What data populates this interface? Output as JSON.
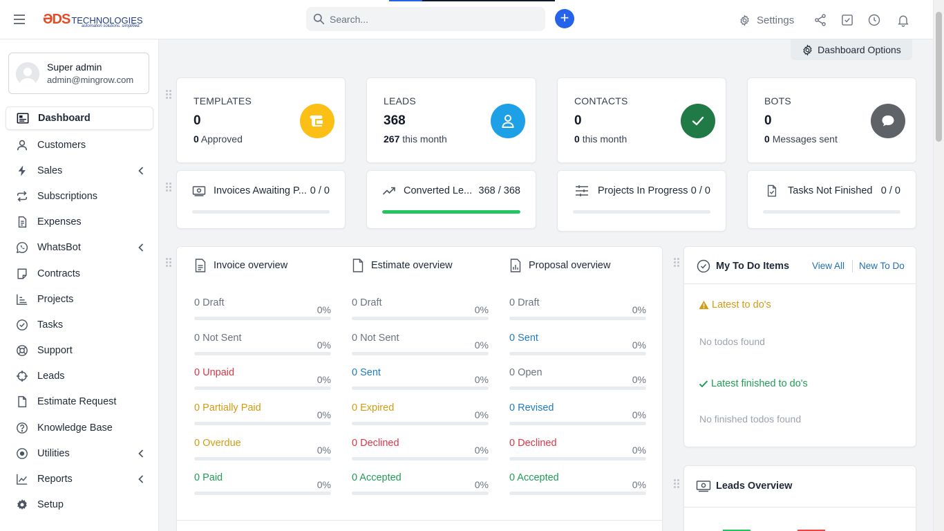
{
  "header": {
    "logo": {
      "mark": "ƏDS",
      "name": "TECHNOLOGIES",
      "tagline": "automation solutions. simplified."
    },
    "search": {
      "placeholder": "Search..."
    },
    "settings_label": "Settings",
    "icons": [
      "share-icon",
      "checkbox-icon",
      "clock-icon",
      "bell-icon"
    ]
  },
  "user": {
    "name": "Super admin",
    "email": "admin@mingrow.com"
  },
  "sidebar": {
    "items": [
      {
        "label": "Dashboard",
        "icon": "dashboard-icon",
        "active": true
      },
      {
        "label": "Customers",
        "icon": "user-icon"
      },
      {
        "label": "Sales",
        "icon": "bolt-icon",
        "has_children": true
      },
      {
        "label": "Subscriptions",
        "icon": "repeat-icon"
      },
      {
        "label": "Expenses",
        "icon": "file-icon"
      },
      {
        "label": "WhatsBot",
        "icon": "whatsapp-icon",
        "has_children": true
      },
      {
        "label": "Contracts",
        "icon": "contract-icon"
      },
      {
        "label": "Projects",
        "icon": "chart-icon"
      },
      {
        "label": "Tasks",
        "icon": "check-circle-icon"
      },
      {
        "label": "Support",
        "icon": "lifebuoy-icon"
      },
      {
        "label": "Leads",
        "icon": "crosshair-icon"
      },
      {
        "label": "Estimate Request",
        "icon": "document-icon"
      },
      {
        "label": "Knowledge Base",
        "icon": "question-icon"
      },
      {
        "label": "Utilities",
        "icon": "record-icon",
        "has_children": true
      },
      {
        "label": "Reports",
        "icon": "line-chart-icon",
        "has_children": true
      },
      {
        "label": "Setup",
        "icon": "gear-icon"
      }
    ]
  },
  "dashboard_options_label": "Dashboard Options",
  "stats": [
    {
      "title": "TEMPLATES",
      "value": "0",
      "sub_value": "0",
      "sub_label": "Approved",
      "color": "#fcbf15",
      "icon": "template-icon"
    },
    {
      "title": "LEADS",
      "value": "368",
      "sub_value": "267",
      "sub_label": "this month",
      "color": "#1ea0e6",
      "icon": "person-icon"
    },
    {
      "title": "CONTACTS",
      "value": "0",
      "sub_value": "0",
      "sub_label": "this month",
      "color": "#1f7a45",
      "icon": "check-icon"
    },
    {
      "title": "BOTS",
      "value": "0",
      "sub_value": "0",
      "sub_label": "Messages sent",
      "color": "#5f6368",
      "icon": "chat-icon"
    }
  ],
  "progress": [
    {
      "label": "Invoices Awaiting P...",
      "value": "0 / 0",
      "fill": 0,
      "icon": "money-icon"
    },
    {
      "label": "Converted Le...",
      "value": "368 / 368",
      "fill": 1,
      "icon": "trend-icon"
    },
    {
      "label": "Projects In Progress",
      "value": "0 / 0",
      "fill": 0,
      "icon": "sliders-icon"
    },
    {
      "label": "Tasks Not Finished",
      "value": "0 / 0",
      "fill": 0,
      "icon": "task-file-icon"
    }
  ],
  "overview": [
    {
      "title": "Invoice overview",
      "rows": [
        {
          "label": "0 Draft",
          "pct": "0%",
          "color": "gray"
        },
        {
          "label": "0 Not Sent",
          "pct": "0%",
          "color": "gray"
        },
        {
          "label": "0 Unpaid",
          "pct": "0%",
          "color": "red"
        },
        {
          "label": "0 Partially Paid",
          "pct": "0%",
          "color": "orange"
        },
        {
          "label": "0 Overdue",
          "pct": "0%",
          "color": "orange"
        },
        {
          "label": "0 Paid",
          "pct": "0%",
          "color": "green"
        }
      ]
    },
    {
      "title": "Estimate overview",
      "rows": [
        {
          "label": "0 Draft",
          "pct": "0%",
          "color": "gray"
        },
        {
          "label": "0 Not Sent",
          "pct": "0%",
          "color": "gray"
        },
        {
          "label": "0 Sent",
          "pct": "0%",
          "color": "blue"
        },
        {
          "label": "0 Expired",
          "pct": "0%",
          "color": "orange"
        },
        {
          "label": "0 Declined",
          "pct": "0%",
          "color": "red"
        },
        {
          "label": "0 Accepted",
          "pct": "0%",
          "color": "green"
        }
      ]
    },
    {
      "title": "Proposal overview",
      "rows": [
        {
          "label": "0 Draft",
          "pct": "0%",
          "color": "gray"
        },
        {
          "label": "0 Sent",
          "pct": "0%",
          "color": "blue"
        },
        {
          "label": "0 Open",
          "pct": "0%",
          "color": "gray"
        },
        {
          "label": "0 Revised",
          "pct": "0%",
          "color": "blue"
        },
        {
          "label": "0 Declined",
          "pct": "0%",
          "color": "red"
        },
        {
          "label": "0 Accepted",
          "pct": "0%",
          "color": "green"
        }
      ]
    }
  ],
  "todo": {
    "title": "My To Do Items",
    "view_all": "View All",
    "new_todo": "New To Do",
    "latest_title": "Latest to do's",
    "latest_empty": "No todos found",
    "finished_title": "Latest finished to do's",
    "finished_empty": "No finished todos found"
  },
  "leads_overview": {
    "title": "Leads Overview"
  }
}
